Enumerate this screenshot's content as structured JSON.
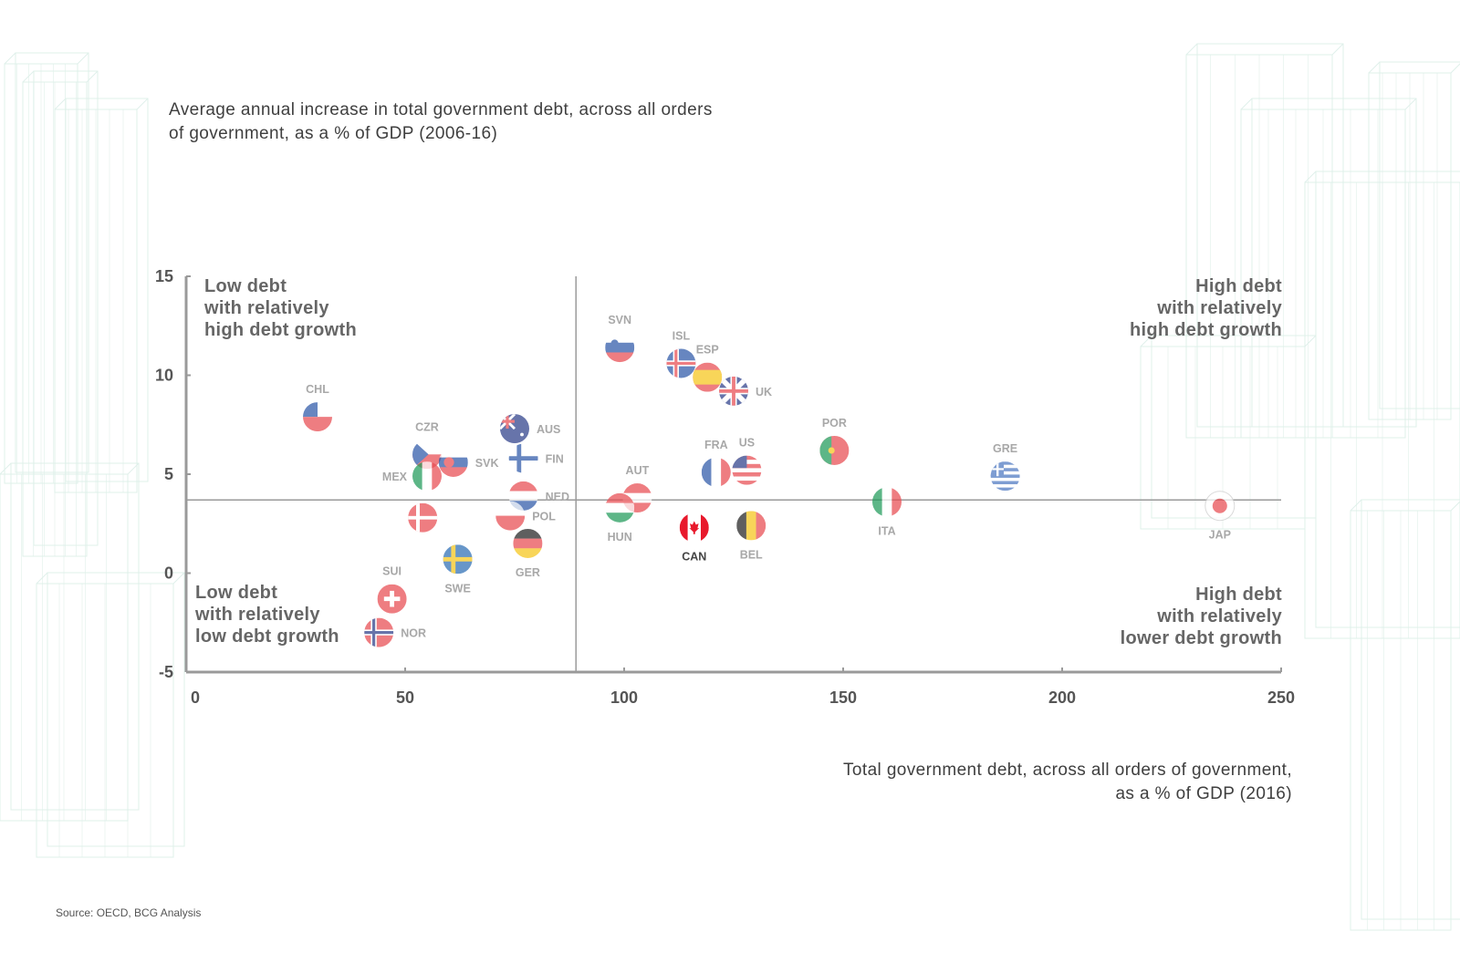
{
  "title_line1": "Average annual increase in total government debt, across all orders",
  "title_line2": "of government, as a % of GDP (2006-16)",
  "xlabel_line1": "Total government debt, across all orders of government,",
  "xlabel_line2": "as a % of GDP (2016)",
  "quadrants": {
    "top_left": [
      "Low debt",
      "with relatively",
      "high debt growth"
    ],
    "top_right": [
      "High debt",
      "with relatively",
      "high debt growth"
    ],
    "bottom_left": [
      "Low debt",
      "with relatively",
      "low debt growth"
    ],
    "bottom_right": [
      "High debt",
      "with relatively",
      "lower debt growth"
    ]
  },
  "source": "Source: OECD, BCG Analysis",
  "chart_data": {
    "type": "scatter",
    "xlim": [
      0,
      250
    ],
    "ylim": [
      -5,
      15
    ],
    "x_ticks": [
      "0",
      "50",
      "100",
      "150",
      "200",
      "250"
    ],
    "y_ticks": [
      "15",
      "10",
      "5",
      "0",
      "-5"
    ],
    "reference_lines": {
      "x": 89,
      "y": 3.7
    },
    "grid": false,
    "points": [
      {
        "label": "CHL",
        "x": 30,
        "y": 7.9,
        "label_pos": "above"
      },
      {
        "label": "CZR",
        "x": 55,
        "y": 6.0,
        "label_pos": "above"
      },
      {
        "label": "SVK",
        "x": 61,
        "y": 5.6,
        "label_pos": "right"
      },
      {
        "label": "MEX",
        "x": 55,
        "y": 4.9,
        "label_pos": "left"
      },
      {
        "label": "",
        "x": 54,
        "y": 2.8,
        "label_pos": "none"
      },
      {
        "label": "AUS",
        "x": 75,
        "y": 7.3,
        "label_pos": "right"
      },
      {
        "label": "FIN",
        "x": 77,
        "y": 5.8,
        "label_pos": "right"
      },
      {
        "label": "NED",
        "x": 77,
        "y": 3.9,
        "label_pos": "right"
      },
      {
        "label": "POL",
        "x": 74,
        "y": 2.9,
        "label_pos": "right"
      },
      {
        "label": "GER",
        "x": 78,
        "y": 1.5,
        "label_pos": "below"
      },
      {
        "label": "SWE",
        "x": 62,
        "y": 0.7,
        "label_pos": "below"
      },
      {
        "label": "SUI",
        "x": 47,
        "y": -1.3,
        "label_pos": "above"
      },
      {
        "label": "NOR",
        "x": 44,
        "y": -3.0,
        "label_pos": "right"
      },
      {
        "label": "SVN",
        "x": 99,
        "y": 11.4,
        "label_pos": "above"
      },
      {
        "label": "ISL",
        "x": 113,
        "y": 10.6,
        "label_pos": "above"
      },
      {
        "label": "ESP",
        "x": 119,
        "y": 9.9,
        "label_pos": "above"
      },
      {
        "label": "UK",
        "x": 125,
        "y": 9.2,
        "label_pos": "right"
      },
      {
        "label": "AUT",
        "x": 103,
        "y": 3.8,
        "label_pos": "above"
      },
      {
        "label": "HUN",
        "x": 99,
        "y": 3.3,
        "label_pos": "below"
      },
      {
        "label": "FRA",
        "x": 121,
        "y": 5.1,
        "label_pos": "above"
      },
      {
        "label": "US",
        "x": 128,
        "y": 5.2,
        "label_pos": "above"
      },
      {
        "label": "CAN",
        "x": 116,
        "y": 2.3,
        "label_pos": "below"
      },
      {
        "label": "BEL",
        "x": 129,
        "y": 2.4,
        "label_pos": "below"
      },
      {
        "label": "POR",
        "x": 148,
        "y": 6.2,
        "label_pos": "above"
      },
      {
        "label": "ITA",
        "x": 160,
        "y": 3.6,
        "label_pos": "below"
      },
      {
        "label": "GRE",
        "x": 187,
        "y": 4.9,
        "label_pos": "above"
      },
      {
        "label": "JAP",
        "x": 236,
        "y": 3.4,
        "label_pos": "below"
      }
    ]
  }
}
